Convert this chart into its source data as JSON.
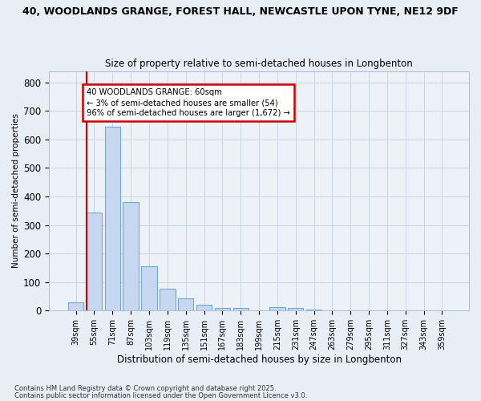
{
  "title_line1": "40, WOODLANDS GRANGE, FOREST HALL, NEWCASTLE UPON TYNE, NE12 9DF",
  "title_line2": "Size of property relative to semi-detached houses in Longbenton",
  "xlabel": "Distribution of semi-detached houses by size in Longbenton",
  "ylabel": "Number of semi-detached properties",
  "categories": [
    "39sqm",
    "55sqm",
    "71sqm",
    "87sqm",
    "103sqm",
    "119sqm",
    "135sqm",
    "151sqm",
    "167sqm",
    "183sqm",
    "199sqm",
    "215sqm",
    "231sqm",
    "247sqm",
    "263sqm",
    "279sqm",
    "295sqm",
    "311sqm",
    "327sqm",
    "343sqm",
    "359sqm"
  ],
  "values": [
    30,
    345,
    645,
    380,
    155,
    78,
    42,
    22,
    10,
    10,
    0,
    12,
    10,
    5,
    0,
    0,
    0,
    2,
    0,
    0,
    2
  ],
  "bar_color": "#c5d8f0",
  "bar_edge_color": "#6aaad4",
  "annotation_text": "40 WOODLANDS GRANGE: 60sqm\n← 3% of semi-detached houses are smaller (54)\n96% of semi-detached houses are larger (1,672) →",
  "annotation_box_color": "#ffffff",
  "annotation_box_edge": "#cc0000",
  "vline_color": "#cc0000",
  "vline_x_idx": 1,
  "ylim": [
    0,
    840
  ],
  "yticks": [
    0,
    100,
    200,
    300,
    400,
    500,
    600,
    700,
    800
  ],
  "footer_line1": "Contains HM Land Registry data © Crown copyright and database right 2025.",
  "footer_line2": "Contains public sector information licensed under the Open Government Licence v3.0.",
  "bg_color": "#e8eef5",
  "plot_bg_color": "#edf2f9",
  "grid_color": "#c8d4e4"
}
